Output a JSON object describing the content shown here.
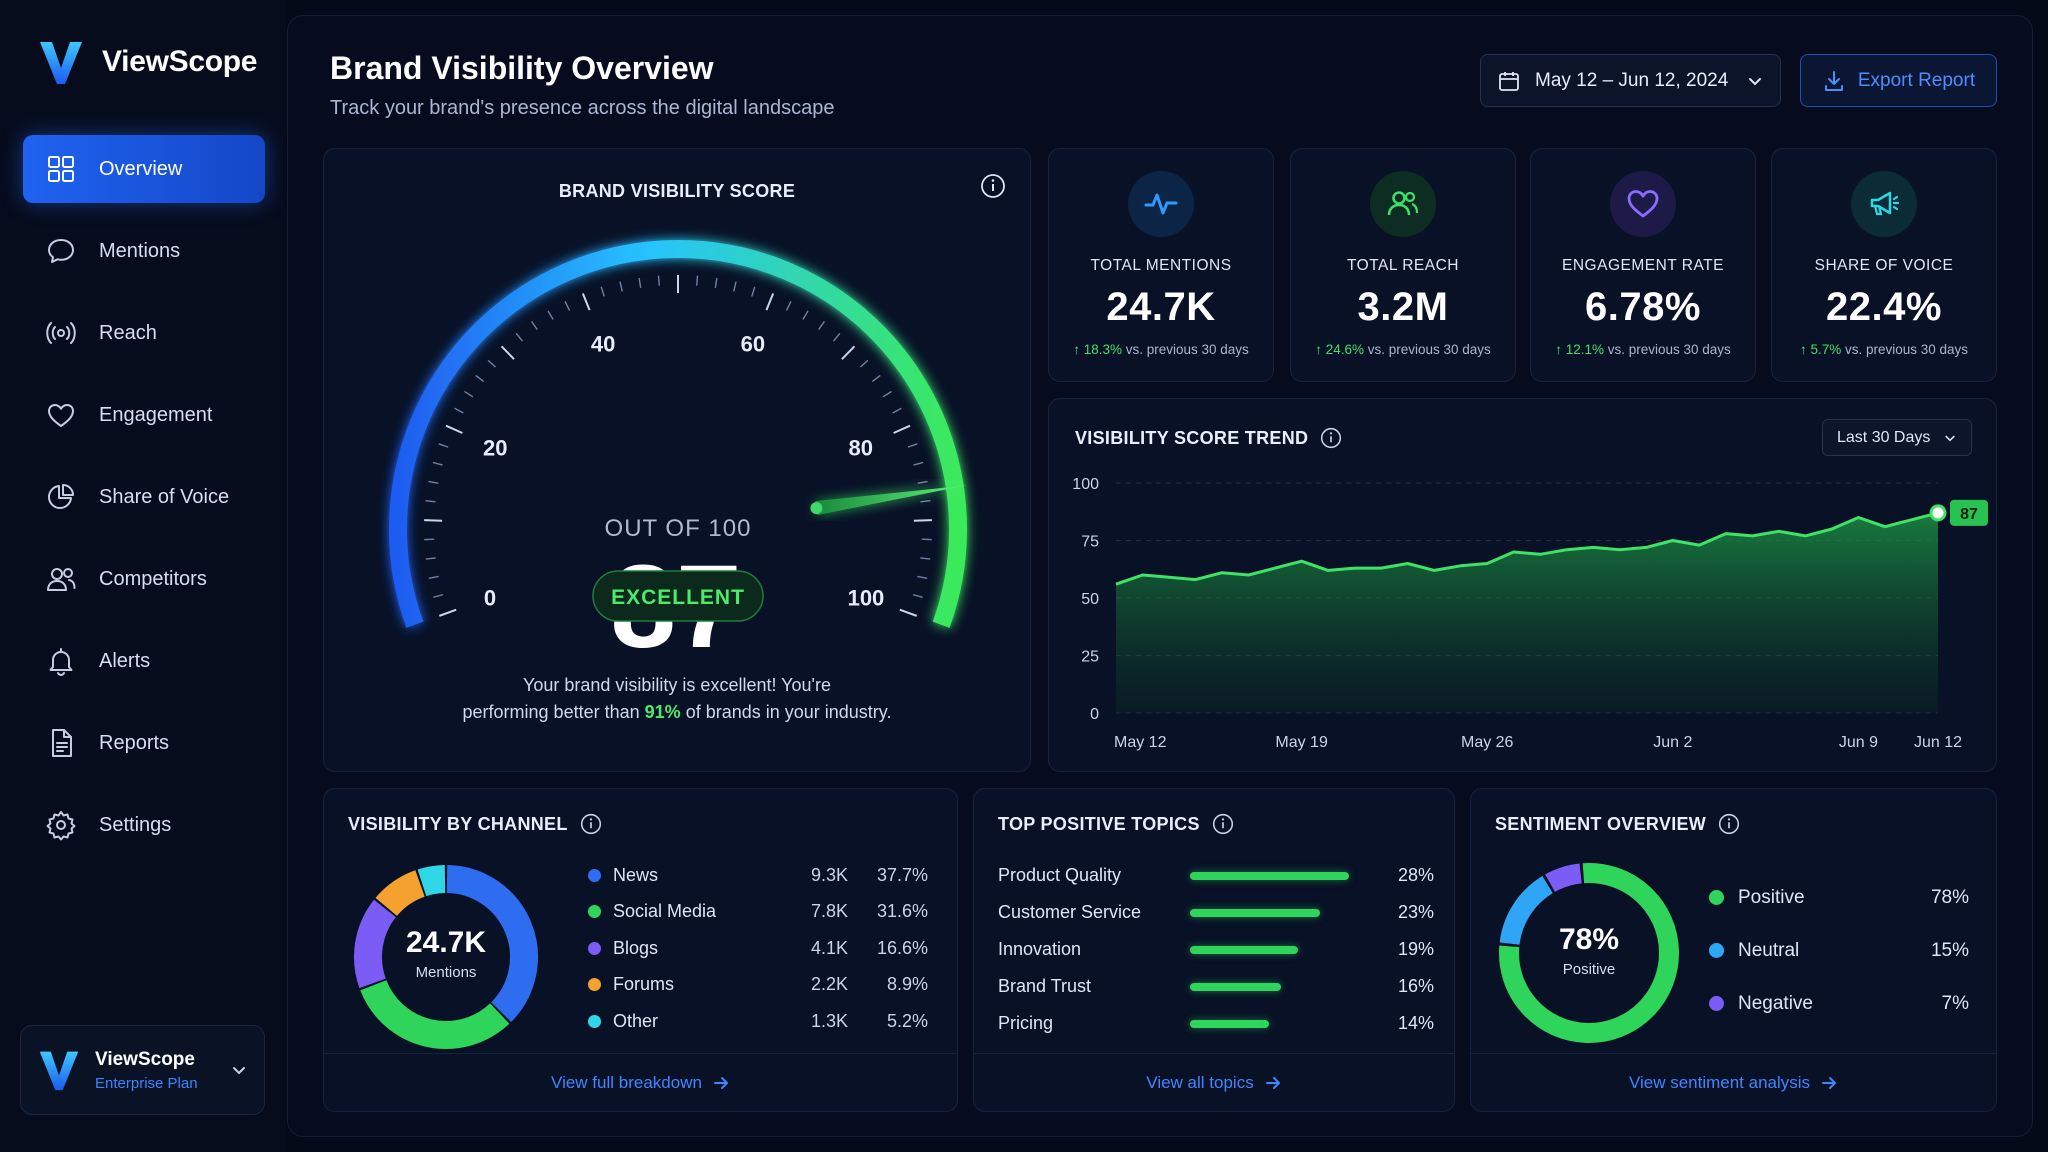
{
  "app": {
    "name": "ViewScope"
  },
  "nav": [
    {
      "label": "Overview",
      "icon": "grid-icon",
      "active": true
    },
    {
      "label": "Mentions",
      "icon": "chat-bubble-icon"
    },
    {
      "label": "Reach",
      "icon": "broadcast-icon"
    },
    {
      "label": "Engagement",
      "icon": "heart-icon"
    },
    {
      "label": "Share of Voice",
      "icon": "pie-chart-icon"
    },
    {
      "label": "Competitors",
      "icon": "users-icon"
    },
    {
      "label": "Alerts",
      "icon": "bell-icon"
    },
    {
      "label": "Reports",
      "icon": "document-icon"
    },
    {
      "label": "Settings",
      "icon": "gear-icon"
    }
  ],
  "account": {
    "name": "ViewScope",
    "plan": "Enterprise Plan"
  },
  "header": {
    "title": "Brand Visibility Overview",
    "subtitle": "Track your brand's presence across the digital landscape",
    "date_range": "May 12 – Jun 12, 2024",
    "export_label": "Export Report"
  },
  "score": {
    "title": "BRAND VISIBILITY SCORE",
    "value": "87",
    "value_num": 87,
    "max": 100,
    "out_of": "OUT OF 100",
    "rating": "EXCELLENT",
    "ticks": [
      "0",
      "20",
      "40",
      "60",
      "80",
      "100"
    ],
    "desc_line1": "Your brand visibility is excellent! You're",
    "desc_pre": "performing better than",
    "desc_pct": "91%",
    "desc_post": "of brands in your industry."
  },
  "metrics": [
    {
      "label": "TOTAL MENTIONS",
      "value": "24.7K",
      "delta": "18.3%",
      "delta_text": "vs. previous 30 days",
      "icon": "activity-pulse-icon",
      "color": "#2f9bff"
    },
    {
      "label": "TOTAL REACH",
      "value": "3.2M",
      "delta": "24.6%",
      "delta_text": "vs. previous 30 days",
      "icon": "users-icon",
      "color": "#3fe06a"
    },
    {
      "label": "ENGAGEMENT RATE",
      "value": "6.78%",
      "delta": "12.1%",
      "delta_text": "vs. previous 30 days",
      "icon": "heart-icon",
      "color": "#8b6cff"
    },
    {
      "label": "SHARE OF VOICE",
      "value": "22.4%",
      "delta": "5.7%",
      "delta_text": "vs. previous 30 days",
      "icon": "megaphone-icon",
      "color": "#2fd6e6"
    }
  ],
  "trend": {
    "title": "VISIBILITY SCORE TREND",
    "range_label": "Last 30 Days",
    "last_label": "87"
  },
  "chart_data": {
    "type": "area",
    "title": "VISIBILITY SCORE TREND",
    "x_ticks": [
      "May 12",
      "May 19",
      "May 26",
      "Jun 2",
      "Jun 9",
      "Jun 12"
    ],
    "y_ticks": [
      "0",
      "25",
      "50",
      "75",
      "100"
    ],
    "ylim": [
      0,
      100
    ],
    "grid": true,
    "x": [
      "May 12",
      "May 13",
      "May 14",
      "May 15",
      "May 16",
      "May 17",
      "May 18",
      "May 19",
      "May 20",
      "May 21",
      "May 22",
      "May 23",
      "May 24",
      "May 25",
      "May 26",
      "May 27",
      "May 28",
      "May 29",
      "May 30",
      "May 31",
      "Jun 1",
      "Jun 2",
      "Jun 3",
      "Jun 4",
      "Jun 5",
      "Jun 6",
      "Jun 7",
      "Jun 8",
      "Jun 9",
      "Jun 10",
      "Jun 11",
      "Jun 12"
    ],
    "values": [
      56,
      60,
      59,
      58,
      61,
      60,
      63,
      66,
      62,
      63,
      63,
      65,
      62,
      64,
      65,
      70,
      69,
      71,
      72,
      71,
      72,
      75,
      73,
      78,
      77,
      79,
      77,
      80,
      85,
      81,
      84,
      87
    ]
  },
  "channels": {
    "title": "VISIBILITY BY CHANNEL",
    "center_value": "24.7K",
    "center_label": "Mentions",
    "footer": "View full breakdown",
    "items": [
      {
        "name": "News",
        "value": "9.3K",
        "pct": "37.7%",
        "pct_num": 37.7,
        "color": "#2f6df0"
      },
      {
        "name": "Social Media",
        "value": "7.8K",
        "pct": "31.6%",
        "pct_num": 31.6,
        "color": "#2fd45b"
      },
      {
        "name": "Blogs",
        "value": "4.1K",
        "pct": "16.6%",
        "pct_num": 16.6,
        "color": "#7b5cf5"
      },
      {
        "name": "Forums",
        "value": "2.2K",
        "pct": "8.9%",
        "pct_num": 8.9,
        "color": "#f5a12f"
      },
      {
        "name": "Other",
        "value": "1.3K",
        "pct": "5.2%",
        "pct_num": 5.2,
        "color": "#2fd6e6"
      }
    ]
  },
  "topics": {
    "title": "TOP POSITIVE TOPICS",
    "footer": "View all topics",
    "items": [
      {
        "name": "Product Quality",
        "pct": "28%",
        "pct_num": 28
      },
      {
        "name": "Customer Service",
        "pct": "23%",
        "pct_num": 23
      },
      {
        "name": "Innovation",
        "pct": "19%",
        "pct_num": 19
      },
      {
        "name": "Brand Trust",
        "pct": "16%",
        "pct_num": 16
      },
      {
        "name": "Pricing",
        "pct": "14%",
        "pct_num": 14
      }
    ]
  },
  "sentiment": {
    "title": "SENTIMENT OVERVIEW",
    "center_value": "78%",
    "center_label": "Positive",
    "footer": "View sentiment analysis",
    "items": [
      {
        "name": "Positive",
        "pct": "78%",
        "pct_num": 78,
        "color": "#2fd45b"
      },
      {
        "name": "Neutral",
        "pct": "15%",
        "pct_num": 15,
        "color": "#2fa6f5"
      },
      {
        "name": "Negative",
        "pct": "7%",
        "pct_num": 7,
        "color": "#7b5cf5"
      }
    ]
  }
}
